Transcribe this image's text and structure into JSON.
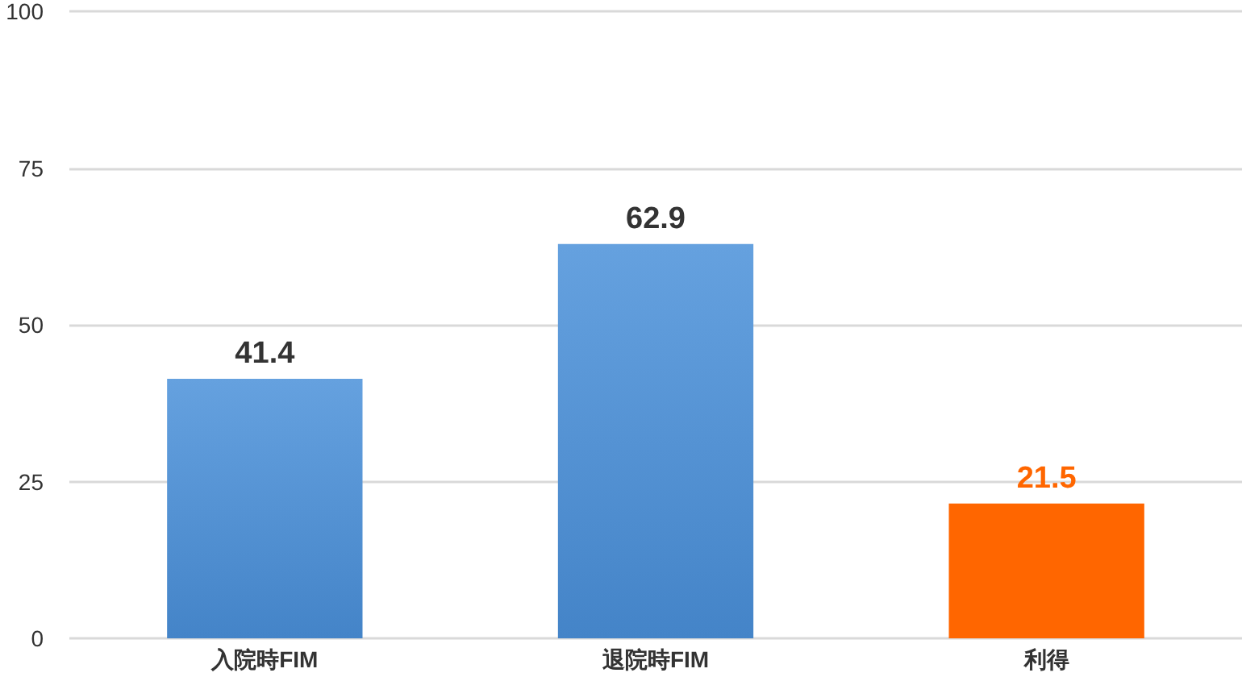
{
  "chart_data": {
    "type": "bar",
    "categories": [
      "入院時FIM",
      "退院時FIM",
      "利得"
    ],
    "values": [
      41.4,
      62.9,
      21.5
    ],
    "colors": [
      "#4a90d9",
      "#4a90d9",
      "#ff6600"
    ],
    "ylim": [
      0,
      100
    ],
    "yticks": [
      0,
      25,
      50,
      75,
      100
    ],
    "grid": "y",
    "data_labels": true
  }
}
